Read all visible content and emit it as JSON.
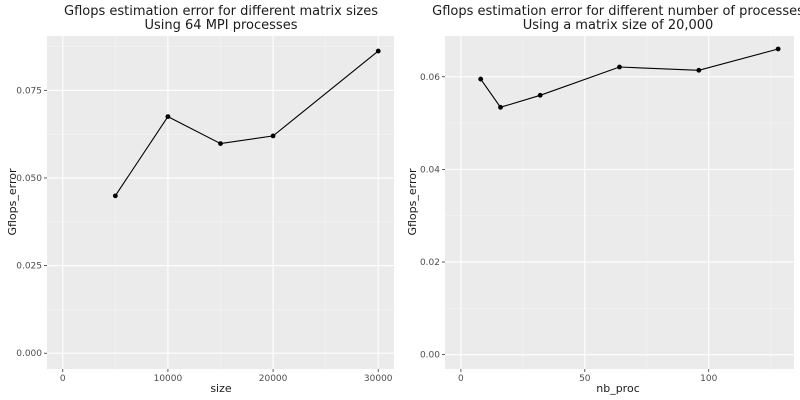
{
  "chart_data": [
    {
      "type": "line",
      "title": "Gflops estimation error for different matrix sizes",
      "subtitle": "Using 64 MPI processes",
      "xlabel": "size",
      "ylabel": "Gflops_error",
      "xlim": [
        -1500,
        31500
      ],
      "ylim": [
        -0.0045,
        0.0905
      ],
      "xticks": [
        0,
        10000,
        20000,
        30000
      ],
      "xtick_labels": [
        "0",
        "10000",
        "20000",
        "30000"
      ],
      "yticks": [
        0.0,
        0.025,
        0.05,
        0.075
      ],
      "ytick_labels": [
        "0.000",
        "0.025",
        "0.050",
        "0.075"
      ],
      "grid": true,
      "x": [
        5000,
        10000,
        15000,
        20000,
        30000
      ],
      "y": [
        0.0449,
        0.0675,
        0.0598,
        0.062,
        0.0862
      ]
    },
    {
      "type": "line",
      "title": "Gflops estimation error for different number of processes",
      "subtitle": "Using a matrix size of 20,000",
      "xlabel": "nb_proc",
      "ylabel": "Gflops_error",
      "xlim": [
        -6.4,
        134.4
      ],
      "ylim": [
        -0.0031,
        0.0688
      ],
      "xticks": [
        0,
        50,
        100
      ],
      "xtick_labels": [
        "0",
        "50",
        "100"
      ],
      "yticks": [
        0.0,
        0.02,
        0.04,
        0.06
      ],
      "ytick_labels": [
        "0.00",
        "0.02",
        "0.04",
        "0.06"
      ],
      "grid": true,
      "x": [
        8,
        16,
        32,
        64,
        96,
        128
      ],
      "y": [
        0.0595,
        0.0534,
        0.056,
        0.0621,
        0.0614,
        0.066
      ]
    }
  ]
}
